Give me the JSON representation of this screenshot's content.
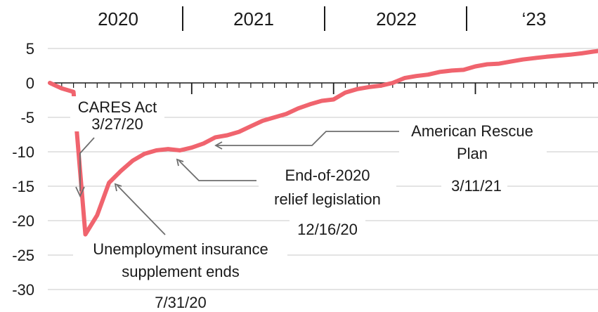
{
  "chart_data": {
    "type": "line",
    "title": "",
    "xlabel": "",
    "ylabel": "",
    "ylim": [
      -30,
      5
    ],
    "yticks": [
      "5",
      "0",
      "-5",
      "-10",
      "-15",
      "-20",
      "-25",
      "-30"
    ],
    "year_labels": [
      "2020",
      "2021",
      "2022",
      "‘23"
    ],
    "grid": "horizontal",
    "line_color": "#f0646e",
    "series": [
      {
        "x": [
          "2020-01",
          "2020-02",
          "2020-03",
          "2020-04",
          "2020-05",
          "2020-06",
          "2020-07",
          "2020-08",
          "2020-09",
          "2020-10",
          "2020-11",
          "2020-12",
          "2021-01",
          "2021-02",
          "2021-03",
          "2021-04",
          "2021-05",
          "2021-06",
          "2021-07",
          "2021-08",
          "2021-09",
          "2021-10",
          "2021-11",
          "2021-12",
          "2022-01",
          "2022-02",
          "2022-03",
          "2022-04",
          "2022-05",
          "2022-06",
          "2022-07",
          "2022-08",
          "2022-09",
          "2022-10",
          "2022-11",
          "2022-12",
          "2023-01",
          "2023-02",
          "2023-03",
          "2023-04",
          "2023-05",
          "2023-06",
          "2023-07",
          "2023-08",
          "2023-09",
          "2023-10",
          "2023-11",
          "2023-12"
        ],
        "values": [
          0,
          -0.8,
          -1.3,
          -22,
          -19.2,
          -14.5,
          -12.8,
          -11.3,
          -10.3,
          -9.8,
          -9.6,
          -9.8,
          -9.4,
          -8.8,
          -7.9,
          -7.6,
          -7.1,
          -6.3,
          -5.5,
          -5,
          -4.5,
          -3.7,
          -3.1,
          -2.6,
          -2.4,
          -1.4,
          -0.9,
          -0.6,
          -0.4,
          0,
          0.7,
          1,
          1.2,
          1.6,
          1.8,
          1.9,
          2.4,
          2.7,
          2.8,
          3.1,
          3.4,
          3.6,
          3.8,
          3.95,
          4.1,
          4.3,
          4.55,
          4.75
        ]
      }
    ],
    "annotations": [
      {
        "lines": [
          "CARES Act",
          "3/27/20"
        ],
        "target": {
          "x": "2020-04",
          "y": -16.4
        }
      },
      {
        "lines": [
          "Unemployment insurance",
          "supplement ends",
          "7/31/20"
        ],
        "target": {
          "x": "2020-06",
          "y": -14.7
        }
      },
      {
        "lines": [
          "End-of-2020",
          "relief legislation",
          "12/16/20"
        ],
        "target": {
          "x": "2020-12",
          "y": -11.3
        }
      },
      {
        "lines": [
          "American Rescue",
          "Plan",
          "3/11/21"
        ],
        "target": {
          "x": "2021-03",
          "y": -9.1
        }
      }
    ]
  }
}
